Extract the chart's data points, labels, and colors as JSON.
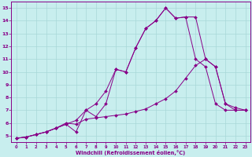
{
  "bg_color": "#c8eeee",
  "line_color": "#880088",
  "grid_color": "#a8d8d8",
  "xlabel": "Windchill (Refroidissement éolien,°C)",
  "xlim_min": -0.5,
  "xlim_max": 23.5,
  "ylim_min": 4.5,
  "ylim_max": 15.5,
  "xticks": [
    0,
    1,
    2,
    3,
    4,
    5,
    6,
    7,
    8,
    9,
    10,
    11,
    12,
    13,
    14,
    15,
    16,
    17,
    18,
    19,
    20,
    21,
    22,
    23
  ],
  "yticks": [
    5,
    6,
    7,
    8,
    9,
    10,
    11,
    12,
    13,
    14,
    15
  ],
  "series": [
    {
      "x": [
        0,
        1,
        2,
        3,
        4,
        5,
        6,
        7,
        8,
        9,
        10,
        11,
        12,
        13,
        14,
        15,
        16,
        17,
        18,
        19,
        20,
        21,
        22,
        23
      ],
      "y": [
        4.8,
        4.9,
        5.1,
        5.3,
        5.6,
        5.9,
        6.2,
        7.0,
        7.5,
        8.5,
        10.2,
        10.0,
        11.9,
        13.4,
        14.0,
        15.0,
        14.2,
        14.3,
        14.3,
        11.0,
        10.4,
        7.5,
        7.0,
        7.0
      ]
    },
    {
      "x": [
        0,
        1,
        2,
        3,
        4,
        5,
        6,
        7,
        8,
        9,
        10,
        11,
        12,
        13,
        14,
        15,
        16,
        17,
        18,
        19,
        20,
        21,
        22,
        23
      ],
      "y": [
        4.8,
        4.9,
        5.1,
        5.3,
        5.6,
        5.9,
        5.3,
        7.0,
        6.5,
        7.5,
        10.2,
        10.0,
        11.9,
        13.4,
        14.0,
        15.0,
        14.2,
        14.3,
        11.0,
        10.4,
        7.5,
        7.0,
        7.0,
        7.0
      ]
    },
    {
      "x": [
        0,
        1,
        2,
        3,
        4,
        5,
        6,
        7,
        8,
        9,
        10,
        11,
        12,
        13,
        14,
        15,
        16,
        17,
        18,
        19,
        20,
        21,
        22,
        23
      ],
      "y": [
        4.8,
        4.9,
        5.1,
        5.3,
        5.6,
        6.0,
        5.9,
        6.3,
        6.4,
        6.5,
        6.6,
        6.7,
        6.9,
        7.1,
        7.5,
        7.9,
        8.5,
        9.5,
        10.5,
        11.0,
        10.4,
        7.5,
        7.2,
        7.0
      ]
    }
  ]
}
